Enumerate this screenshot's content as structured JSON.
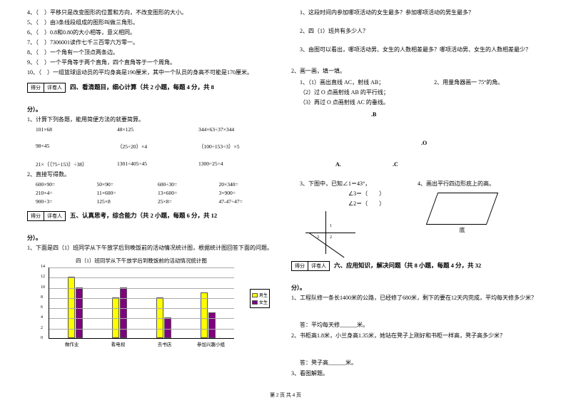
{
  "leftTop": {
    "items": [
      "4、（　）平移只是改变图形的位置和方向，不改变图形的大小。",
      "5、（　）由3条线段组成的图形叫做三角形。",
      "6、（　）0.8和0.80的大小相等，意义相同。",
      "7、（　）7306001读作七千三百零六万零一。",
      "8、（　）一个角有一个顶点两条边。",
      "9、（　）一个平角等于两个直角，四个直角等于一个周角。",
      "10、（　）一组篮球运动员的平均身高是190厘米，其中一个队员的身高不可能是170厘米。"
    ]
  },
  "scoreLabels": {
    "a": "得分",
    "b": "评卷人"
  },
  "section4": {
    "title": "四、看清题目，细心计算（共 2 小题，每题 4 分，共 8",
    "suffix": "分）。",
    "q1": "1、计算下列各题，能用简便方法的就要简算。",
    "rows1": [
      [
        "101×68",
        "48×125",
        "344×63÷37×344",
        ""
      ],
      [
        "98×45",
        "（25÷20）×4",
        "（100÷153÷3）×5",
        ""
      ],
      [
        "21×（（75÷153）÷38）",
        "1301÷405÷45",
        "1300÷25÷4",
        ""
      ]
    ],
    "q2": "2、直接写得数。",
    "rows2": [
      [
        "600×90=",
        "50×90=",
        "600÷30=",
        "20×340="
      ],
      [
        "210×4=",
        "11×600=",
        "13×600=",
        "3×900="
      ],
      [
        "900÷3=",
        "125×8",
        "25×8=",
        "47-47÷47="
      ]
    ]
  },
  "section5": {
    "title": "五、认真思考，综合能力（共 2 小题，每题 6 分，共 12",
    "suffix": "分）。",
    "q1": "1、下面是四（1）班同学从下午放学后到晚饭前的活动情况统计图，根据统计图回答下面的问题。"
  },
  "chart": {
    "title": "四（1）班同学从下午放学后到晚饭前的活动情况统计图",
    "ymax": 14,
    "yticks": [
      0,
      2,
      4,
      6,
      8,
      10,
      12,
      14
    ],
    "categories": [
      "做作业",
      "看电视",
      "去书店",
      "参加兴趣小组"
    ],
    "seriesA": [
      12,
      8,
      8,
      9
    ],
    "seriesB": [
      10,
      10,
      4,
      5
    ],
    "legend": [
      "男生",
      "女生"
    ],
    "colorA": "#ffff00",
    "colorB": "#800080"
  },
  "rightTop": {
    "items": [
      "1、这段时间内参加哪项活动的女生最多？参加哪项活动的男生最多？",
      "2、四（1）班共有多少人？",
      "3、由图可以看出，哪项活动男、女生的人数相差最多？哪项活动男、女生的人数相差最少？"
    ]
  },
  "geo": {
    "head": "2、画一画，填一填。",
    "q1a": "1、（1）画出直线 AC，射线 AB；",
    "q1b": "（2）过 O 点画射线 AB 的平行线；",
    "q1c": "（3）再过 O 点画射线 AC 的垂线。",
    "q2": "2、用量角器画一 75°的角。",
    "labB": ".B",
    "labO": ".O",
    "labA": "A.",
    "labC": ".C",
    "q3": "3、下图中，已知∠1＝43°，",
    "ang2": "∠3＝（　　）",
    "ang3": "∠2＝（　　）",
    "q4": "4、画出平行四边形底上的高。",
    "base": "底"
  },
  "section6": {
    "title": "六、应用知识，解决问题（共 8 小题，每题 4 分，共 32",
    "suffix": "分）。",
    "q1": "1、工程队修一条长1400米的公路，已经修了680米，剩下的要在12天内完成，平均每天修多少米？",
    "a1": "答：平均每天修______米。",
    "q2": "2、书柜高1.8米，小兰身高1.35米，她站在凳子上刚好和书柜一样高，凳子高多少米？",
    "a2": "答：凳子高______米。",
    "q3": "3、看图解题。"
  },
  "footer": "第 2 页 共 4 页"
}
